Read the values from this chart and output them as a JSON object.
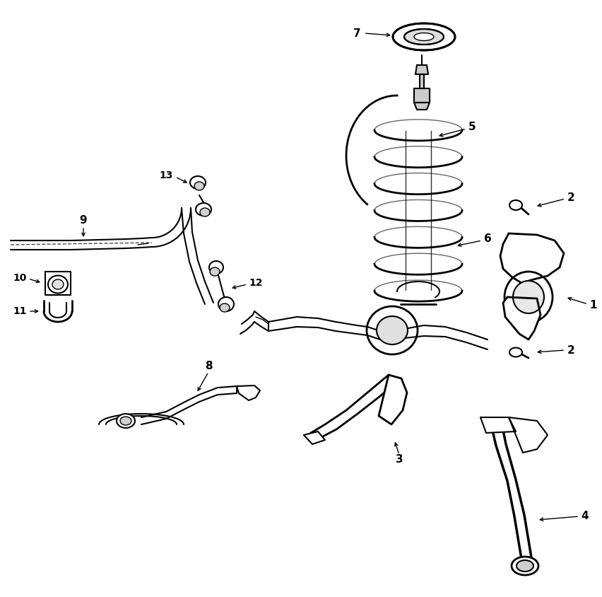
{
  "background_color": "#ffffff",
  "fig_width": 8.53,
  "fig_height": 8.44,
  "dpi": 100
}
